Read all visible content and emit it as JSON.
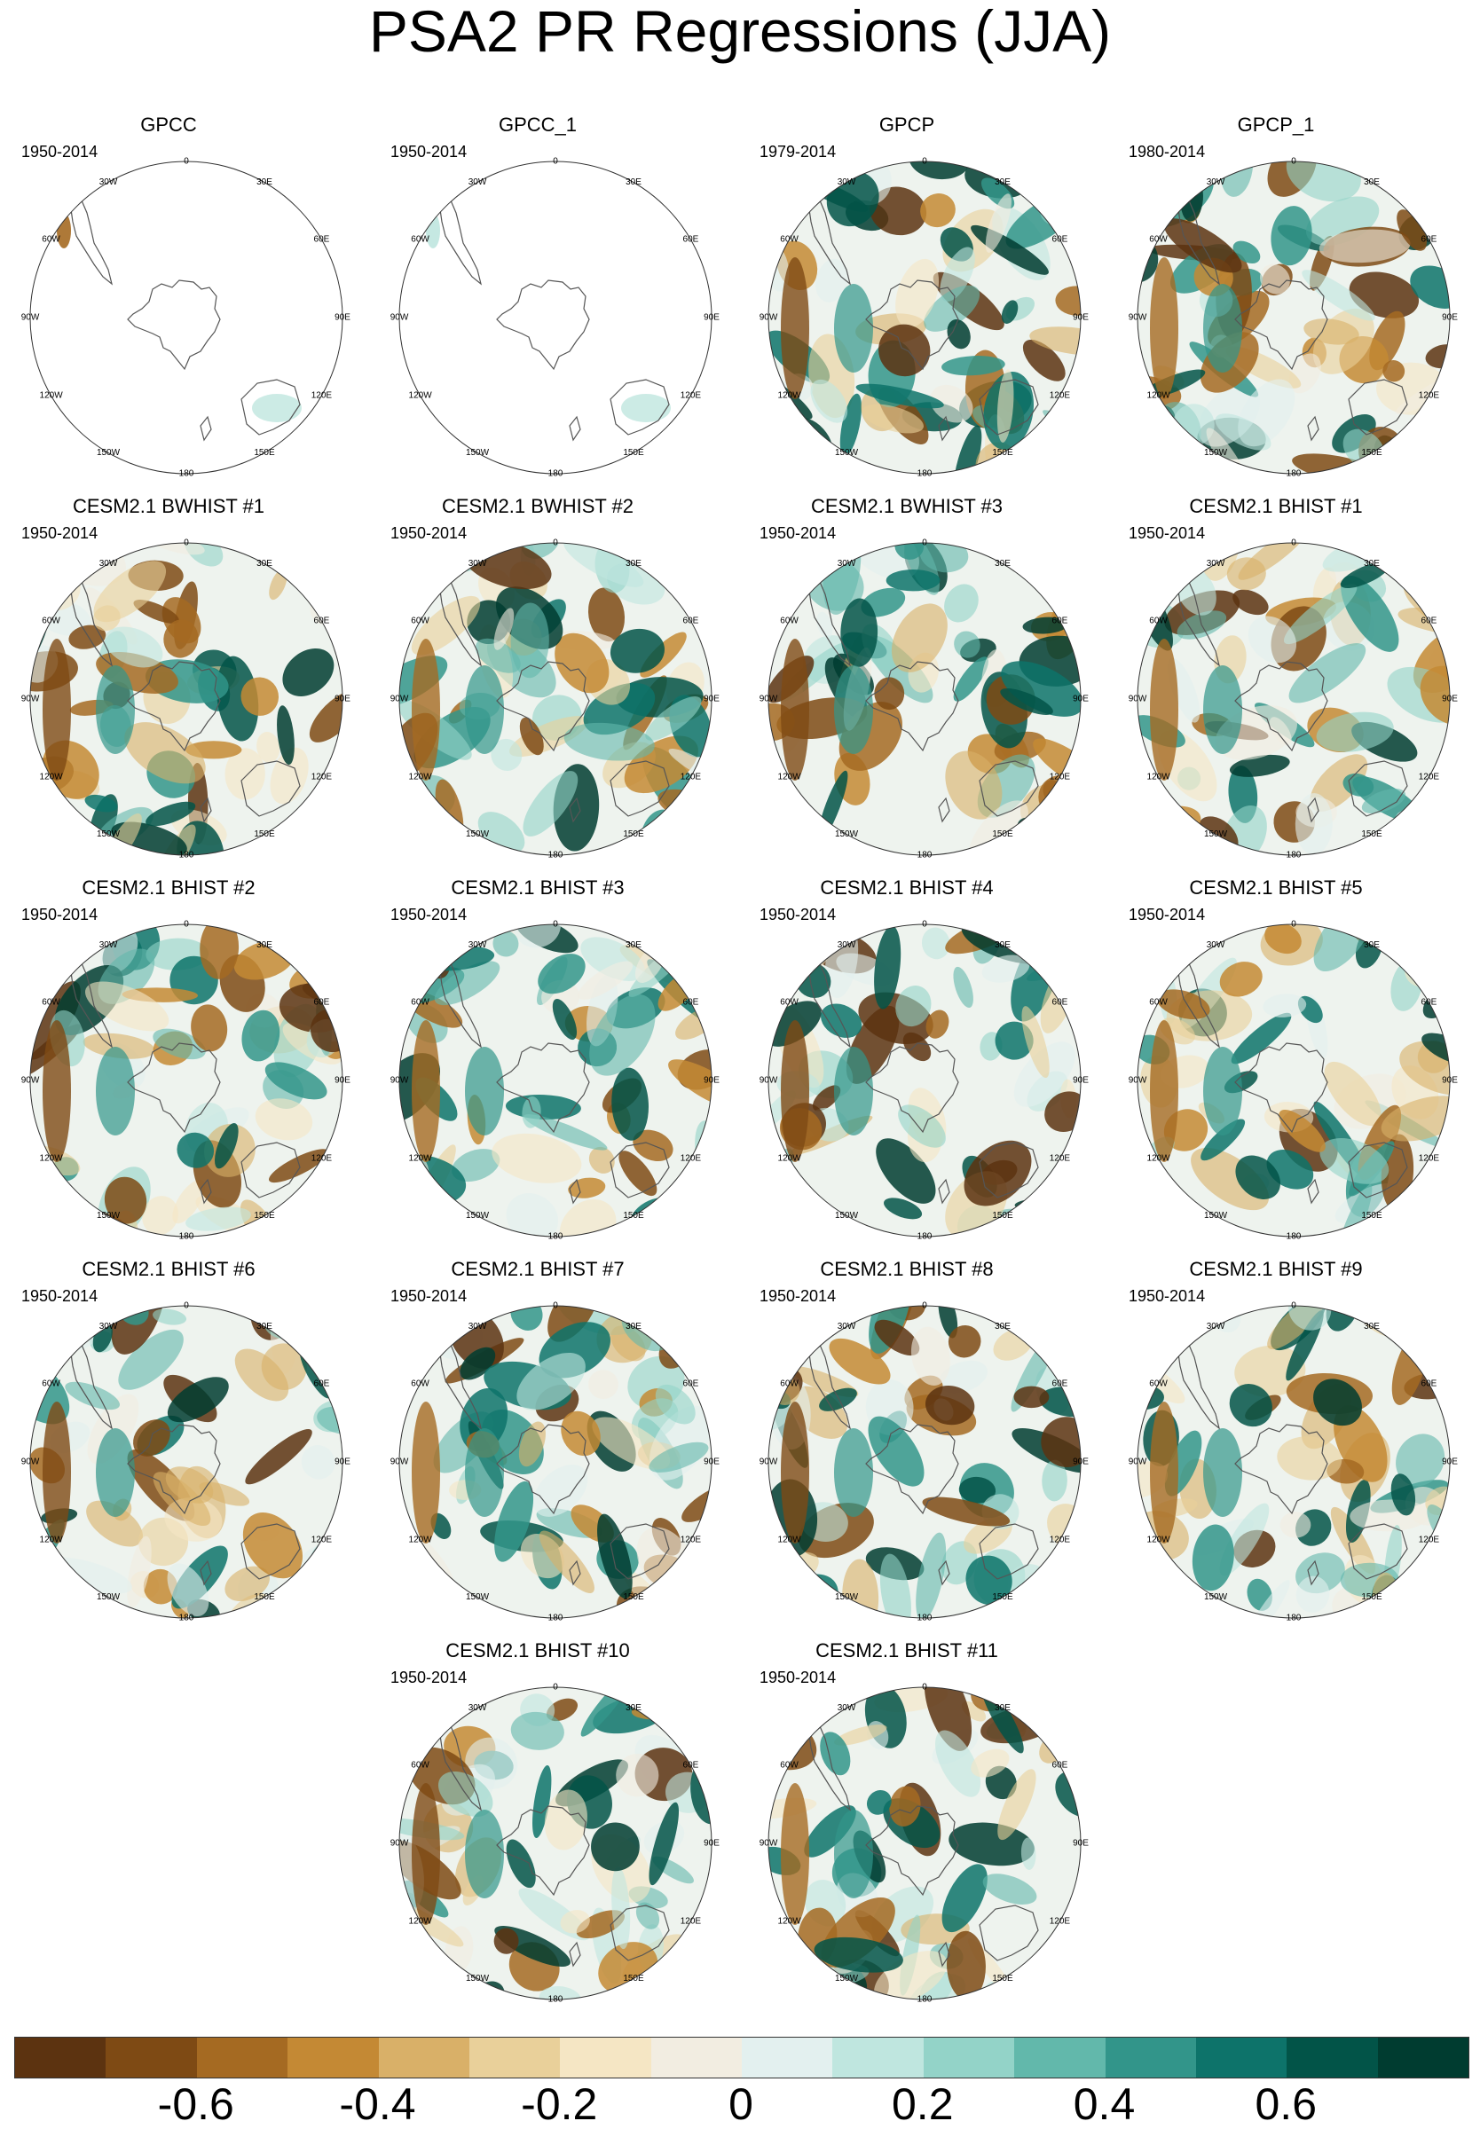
{
  "title": "PSA2 PR Regressions (JJA)",
  "longitude_labels": [
    "0",
    "30E",
    "60E",
    "90E",
    "120E",
    "150E",
    "180",
    "150W",
    "120W",
    "90W",
    "60W",
    "30W"
  ],
  "panels": [
    {
      "title": "GPCC",
      "period": "1950-2014",
      "coverage": "land-only"
    },
    {
      "title": "GPCC_1",
      "period": "1950-2014",
      "coverage": "land-only"
    },
    {
      "title": "GPCP",
      "period": "1979-2014",
      "coverage": "global"
    },
    {
      "title": "GPCP_1",
      "period": "1980-2014",
      "coverage": "global"
    },
    {
      "title": "CESM2.1 BWHIST #1",
      "period": "1950-2014",
      "coverage": "global"
    },
    {
      "title": "CESM2.1 BWHIST #2",
      "period": "1950-2014",
      "coverage": "global"
    },
    {
      "title": "CESM2.1 BWHIST #3",
      "period": "1950-2014",
      "coverage": "global"
    },
    {
      "title": "CESM2.1 BHIST #1",
      "period": "1950-2014",
      "coverage": "global"
    },
    {
      "title": "CESM2.1 BHIST #2",
      "period": "1950-2014",
      "coverage": "global"
    },
    {
      "title": "CESM2.1 BHIST #3",
      "period": "1950-2014",
      "coverage": "global"
    },
    {
      "title": "CESM2.1 BHIST #4",
      "period": "1950-2014",
      "coverage": "global"
    },
    {
      "title": "CESM2.1 BHIST #5",
      "period": "1950-2014",
      "coverage": "global"
    },
    {
      "title": "CESM2.1 BHIST #6",
      "period": "1950-2014",
      "coverage": "global"
    },
    {
      "title": "CESM2.1 BHIST #7",
      "period": "1950-2014",
      "coverage": "global"
    },
    {
      "title": "CESM2.1 BHIST #8",
      "period": "1950-2014",
      "coverage": "global"
    },
    {
      "title": "CESM2.1 BHIST #9",
      "period": "1950-2014",
      "coverage": "global"
    },
    {
      "title": "CESM2.1 BHIST #10",
      "period": "1950-2014",
      "coverage": "global"
    },
    {
      "title": "CESM2.1 BHIST #11",
      "period": "1950-2014",
      "coverage": "global"
    }
  ],
  "colorbar": {
    "colors": [
      "#5c3310",
      "#7e4a14",
      "#a56a22",
      "#c48934",
      "#d9b068",
      "#e9d09a",
      "#f5e6c4",
      "#f2ede1",
      "#e3f0ef",
      "#bfe6df",
      "#93d3c8",
      "#62b8ab",
      "#32958a",
      "#0d736a",
      "#025448",
      "#003c30"
    ],
    "labels": [
      {
        "text": "-0.6",
        "boundary": 2
      },
      {
        "text": "-0.4",
        "boundary": 4
      },
      {
        "text": "-0.2",
        "boundary": 6
      },
      {
        "text": "0",
        "boundary": 8
      },
      {
        "text": "0.2",
        "boundary": 10
      },
      {
        "text": "0.4",
        "boundary": 12
      },
      {
        "text": "0.6",
        "boundary": 14
      }
    ]
  }
}
